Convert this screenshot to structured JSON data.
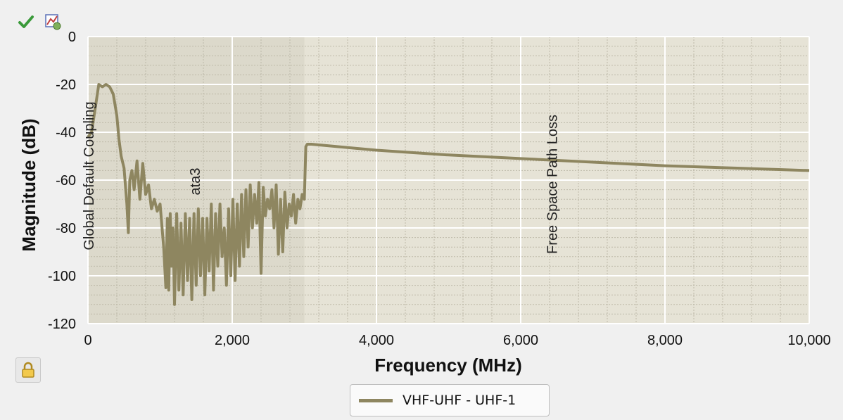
{
  "toolbar": {
    "icons": [
      "checkmark-icon",
      "chart-options-icon",
      "lock-icon"
    ]
  },
  "colors": {
    "series": "#8e8660",
    "plot_bg": "#e6e3d6",
    "plot_bg_left": "#dcd9cb",
    "grid_major": "#ffffff",
    "grid_minor": "#bdb9a8"
  },
  "chart_data": {
    "type": "line",
    "title": "",
    "xlabel": "Frequency (MHz)",
    "ylabel": "Magnitude (dB)",
    "xlim": [
      0,
      10000
    ],
    "ylim": [
      -120,
      0
    ],
    "xticks": [
      "0",
      "2,000",
      "4,000",
      "6,000",
      "8,000",
      "10,000"
    ],
    "xtick_values": [
      0,
      2000,
      4000,
      6000,
      8000,
      10000
    ],
    "yticks": [
      "0",
      "-20",
      "-40",
      "-60",
      "-80",
      "-100",
      "-120"
    ],
    "ytick_values": [
      0,
      -20,
      -40,
      -60,
      -80,
      -100,
      -120
    ],
    "grid": true,
    "legend": {
      "placement": "bottom-center",
      "entries": [
        "VHF-UHF - UHF-1"
      ]
    },
    "annotations": [
      {
        "text": "Global Default Coupling",
        "x": 80,
        "orientation": "vertical"
      },
      {
        "text": "ata3",
        "x": 1550,
        "orientation": "vertical"
      },
      {
        "text": "Free Space Path Loss",
        "x": 6500,
        "orientation": "vertical"
      }
    ],
    "series": [
      {
        "name": "VHF-UHF - UHF-1",
        "x": [
          0,
          50,
          100,
          150,
          200,
          250,
          300,
          350,
          400,
          430,
          460,
          500,
          540,
          560,
          580,
          610,
          640,
          680,
          720,
          760,
          800,
          840,
          880,
          920,
          960,
          1000,
          1050,
          1080,
          1100,
          1120,
          1140,
          1160,
          1180,
          1200,
          1230,
          1260,
          1290,
          1320,
          1350,
          1380,
          1410,
          1440,
          1470,
          1500,
          1530,
          1560,
          1590,
          1620,
          1650,
          1680,
          1710,
          1740,
          1770,
          1800,
          1830,
          1860,
          1890,
          1920,
          1950,
          1980,
          2010,
          2040,
          2070,
          2100,
          2130,
          2160,
          2190,
          2220,
          2250,
          2280,
          2310,
          2340,
          2370,
          2400,
          2430,
          2460,
          2490,
          2520,
          2550,
          2580,
          2610,
          2640,
          2670,
          2700,
          2730,
          2760,
          2790,
          2820,
          2850,
          2880,
          2910,
          2940,
          2970,
          3000,
          3020,
          3040,
          3100,
          4000,
          5000,
          6000,
          7000,
          8000,
          9000,
          10000
        ],
        "y": [
          -42,
          -40,
          -30,
          -20,
          -21,
          -20,
          -21,
          -24,
          -33,
          -43,
          -50,
          -55,
          -70,
          -82,
          -60,
          -56,
          -64,
          -52,
          -68,
          -53,
          -66,
          -62,
          -72,
          -68,
          -73,
          -70,
          -88,
          -105,
          -76,
          -106,
          -74,
          -96,
          -80,
          -112,
          -74,
          -106,
          -78,
          -108,
          -74,
          -102,
          -76,
          -110,
          -74,
          -104,
          -72,
          -100,
          -76,
          -108,
          -76,
          -98,
          -70,
          -106,
          -74,
          -96,
          -70,
          -92,
          -80,
          -104,
          -72,
          -100,
          -68,
          -102,
          -70,
          -96,
          -66,
          -92,
          -64,
          -88,
          -62,
          -80,
          -66,
          -78,
          -61,
          -99,
          -63,
          -75,
          -68,
          -72,
          -64,
          -80,
          -62,
          -91,
          -68,
          -90,
          -65,
          -80,
          -70,
          -75,
          -66,
          -78,
          -68,
          -72,
          -66,
          -68,
          -46,
          -45,
          -45,
          -47.5,
          -49.5,
          -51,
          -52.5,
          -54,
          -55,
          -56
        ]
      }
    ]
  }
}
